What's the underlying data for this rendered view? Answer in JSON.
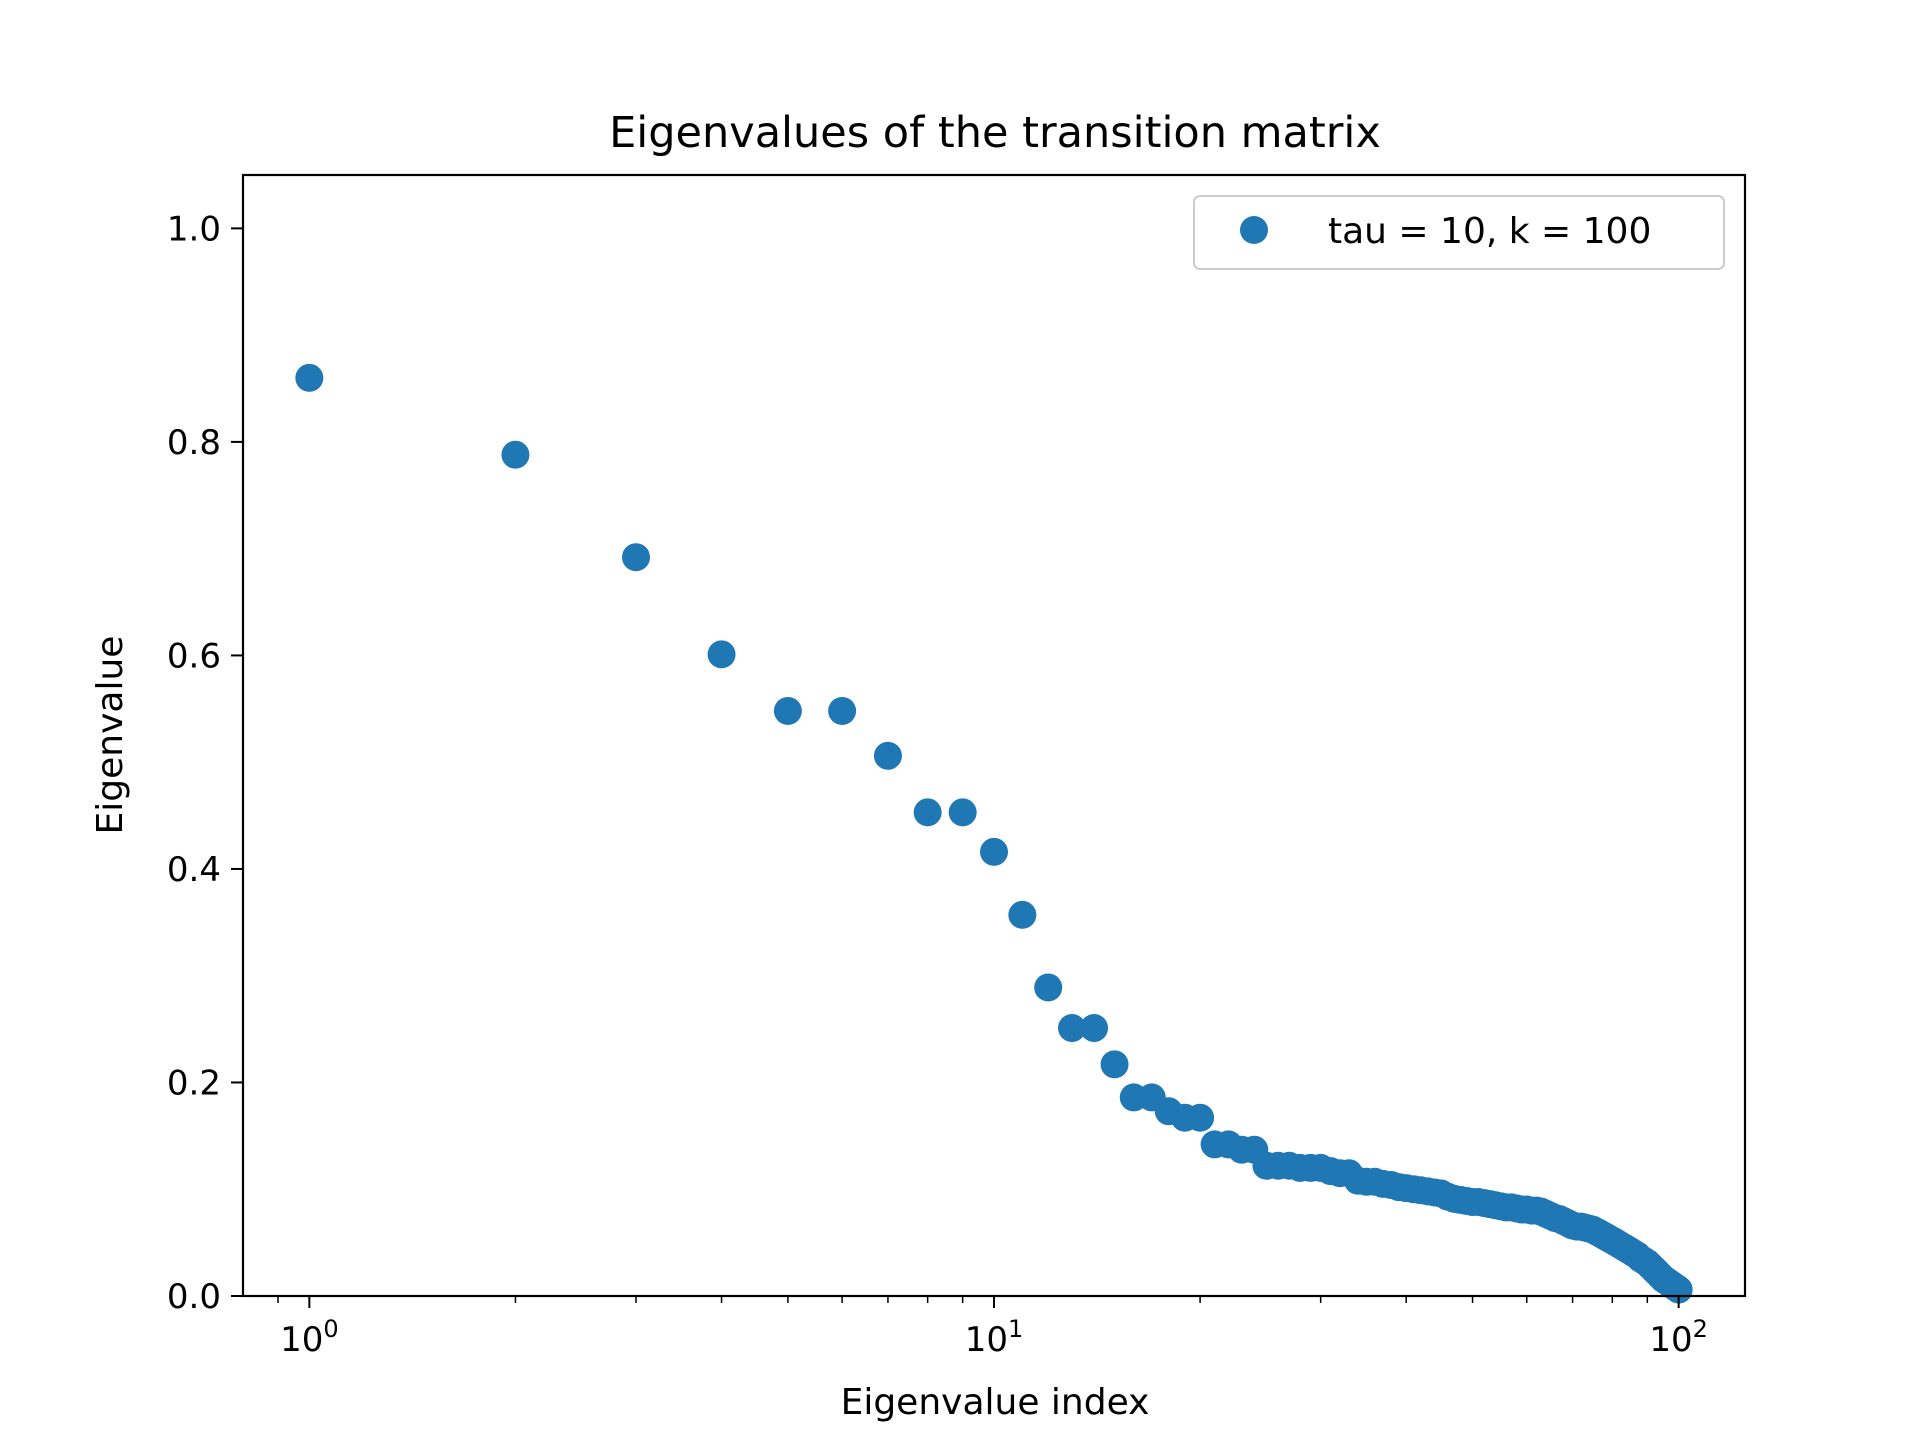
{
  "chart_data": {
    "type": "scatter",
    "title": "Eigenvalues of the transition matrix",
    "xlabel": "Eigenvalue index",
    "ylabel": "Eigenvalue",
    "xscale": "log",
    "xlim": [
      0.8,
      125
    ],
    "ylim": [
      0.0,
      1.05
    ],
    "grid": false,
    "legend_position": "top-right",
    "marker_color": "#1f77b4",
    "x_ticks": [
      {
        "value": 1,
        "base": "10",
        "exp": "0"
      },
      {
        "value": 10,
        "base": "10",
        "exp": "1"
      },
      {
        "value": 100,
        "base": "10",
        "exp": "2"
      }
    ],
    "y_ticks": [
      {
        "value": 0.0,
        "label": "0.0"
      },
      {
        "value": 0.2,
        "label": "0.2"
      },
      {
        "value": 0.4,
        "label": "0.4"
      },
      {
        "value": 0.6,
        "label": "0.6"
      },
      {
        "value": 0.8,
        "label": "0.8"
      },
      {
        "value": 1.0,
        "label": "1.0"
      }
    ],
    "series": [
      {
        "name": "tau = 10, k = 100",
        "x": [
          1,
          2,
          3,
          4,
          5,
          6,
          7,
          8,
          9,
          10,
          11,
          12,
          13,
          14,
          15,
          16,
          17,
          18,
          19,
          20,
          21,
          22,
          23,
          24,
          25,
          26,
          27,
          28,
          29,
          30,
          31,
          32,
          33,
          34,
          35,
          36,
          37,
          38,
          39,
          40,
          41,
          42,
          43,
          44,
          45,
          46,
          47,
          48,
          49,
          50,
          51,
          52,
          53,
          54,
          55,
          56,
          57,
          58,
          59,
          60,
          61,
          62,
          63,
          64,
          65,
          66,
          67,
          68,
          69,
          70,
          71,
          72,
          73,
          74,
          75,
          76,
          77,
          78,
          79,
          80,
          81,
          82,
          83,
          84,
          85,
          86,
          87,
          88,
          89,
          90,
          91,
          92,
          93,
          94,
          95,
          96,
          97,
          98,
          99,
          100
        ],
        "y": [
          0.86,
          0.788,
          0.692,
          0.601,
          0.548,
          0.548,
          0.506,
          0.453,
          0.453,
          0.416,
          0.357,
          0.289,
          0.251,
          0.251,
          0.217,
          0.186,
          0.186,
          0.173,
          0.167,
          0.167,
          0.142,
          0.142,
          0.137,
          0.137,
          0.122,
          0.122,
          0.122,
          0.12,
          0.12,
          0.12,
          0.117,
          0.115,
          0.115,
          0.108,
          0.107,
          0.107,
          0.105,
          0.104,
          0.102,
          0.101,
          0.1,
          0.099,
          0.098,
          0.097,
          0.096,
          0.093,
          0.091,
          0.09,
          0.089,
          0.088,
          0.088,
          0.087,
          0.086,
          0.085,
          0.084,
          0.083,
          0.083,
          0.082,
          0.081,
          0.081,
          0.08,
          0.08,
          0.079,
          0.077,
          0.075,
          0.073,
          0.072,
          0.07,
          0.068,
          0.066,
          0.065,
          0.065,
          0.064,
          0.063,
          0.062,
          0.06,
          0.058,
          0.056,
          0.054,
          0.052,
          0.05,
          0.048,
          0.046,
          0.044,
          0.042,
          0.04,
          0.038,
          0.035,
          0.033,
          0.031,
          0.028,
          0.025,
          0.022,
          0.019,
          0.016,
          0.014,
          0.012,
          0.01,
          0.008,
          0.006
        ]
      }
    ]
  }
}
